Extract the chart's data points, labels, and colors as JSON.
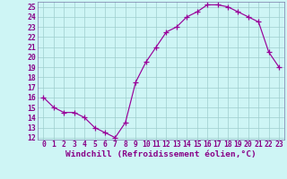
{
  "x": [
    0,
    1,
    2,
    3,
    4,
    5,
    6,
    7,
    8,
    9,
    10,
    11,
    12,
    13,
    14,
    15,
    16,
    17,
    18,
    19,
    20,
    21,
    22,
    23
  ],
  "y": [
    16,
    15,
    14.5,
    14.5,
    14,
    13,
    12.5,
    12,
    13.5,
    17.5,
    19.5,
    21,
    22.5,
    23,
    24,
    24.5,
    25.2,
    25.2,
    25,
    24.5,
    24,
    23.5,
    20.5,
    19
  ],
  "ylim_min": 11.8,
  "ylim_max": 25.5,
  "yticks": [
    12,
    13,
    14,
    15,
    16,
    17,
    18,
    19,
    20,
    21,
    22,
    23,
    24,
    25
  ],
  "xticks": [
    0,
    1,
    2,
    3,
    4,
    5,
    6,
    7,
    8,
    9,
    10,
    11,
    12,
    13,
    14,
    15,
    16,
    17,
    18,
    19,
    20,
    21,
    22,
    23
  ],
  "xlabel": "Windchill (Refroidissement éolien,°C)",
  "line_color": "#990099",
  "marker_color": "#990099",
  "bg_color": "#cef5f5",
  "grid_color": "#9ecece",
  "spine_color": "#7a7aaa",
  "tick_color": "#880088",
  "label_color": "#880088",
  "tick_fontsize": 5.8,
  "xlabel_fontsize": 6.8
}
